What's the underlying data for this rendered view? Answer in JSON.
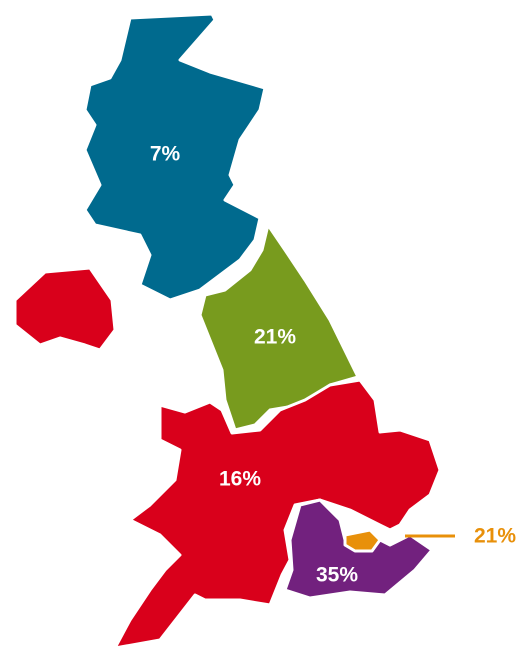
{
  "regions": [
    {
      "value": 7,
      "label": "7%",
      "color": "#006a8e"
    },
    {
      "value": 21,
      "label": "21%",
      "color": "#789b1e"
    },
    {
      "value": 16,
      "label": "16%",
      "color": "#d9001b"
    },
    {
      "value": 35,
      "label": "35%",
      "color": "#72217e"
    },
    {
      "value": 21,
      "label": "21%",
      "color": "#e8900a"
    }
  ],
  "island_color": "#d9001b"
}
